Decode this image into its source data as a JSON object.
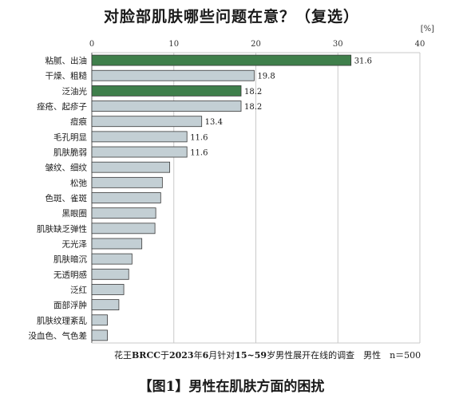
{
  "chart_data": {
    "type": "bar",
    "orientation": "horizontal",
    "title": "对脸部肌肤哪些问题在意？（复选）",
    "unit": "[%]",
    "xlim": [
      0,
      40
    ],
    "x_ticks": [
      "0",
      "10",
      "20",
      "30",
      "40"
    ],
    "grid": true,
    "categories": [
      "粘腻、出油",
      "干燥、粗糙",
      "泛油光",
      "痤疮、起疹子",
      "痘痕",
      "毛孔明显",
      "肌肤脆弱",
      "皱纹、细纹",
      "松弛",
      "色斑、雀斑",
      "黑眼圈",
      "肌肤缺乏弹性",
      "无光泽",
      "肌肤暗沉",
      "无透明感",
      "泛红",
      "面部浮肿",
      "肌肤纹理紊乱",
      "没血色、气色差"
    ],
    "values": [
      31.6,
      19.8,
      18.2,
      18.2,
      13.4,
      11.6,
      11.6,
      9.5,
      8.6,
      8.4,
      7.8,
      7.7,
      6.1,
      4.9,
      4.5,
      3.9,
      3.3,
      1.9,
      1.9
    ],
    "value_labels": [
      "31.6",
      "19.8",
      "18.2",
      "18.2",
      "13.4",
      "11.6",
      "11.6",
      "",
      "",
      "",
      "",
      "",
      "",
      "",
      "",
      "",
      "",
      "",
      ""
    ],
    "highlighted": [
      true,
      false,
      true,
      false,
      false,
      false,
      false,
      false,
      false,
      false,
      false,
      false,
      false,
      false,
      false,
      false,
      false,
      false,
      false
    ]
  },
  "colors": {
    "highlight": "#3f7f4b",
    "normal": "#c3cfd4",
    "bar_stroke": "#3a3a3a",
    "grid": "#c9c9c9",
    "axis": "#555555"
  },
  "source": {
    "prefix": "花王",
    "brand": "BRCC",
    "mid1": "于",
    "year": "2023",
    "mid2": "年",
    "month": "6",
    "mid3": "月针对",
    "ages": "15~59",
    "mid4": "岁男性展开在线的调查　男性　n＝500"
  },
  "caption": {
    "open": "【图1】",
    "text": "男性在肌肤方面的困扰"
  }
}
